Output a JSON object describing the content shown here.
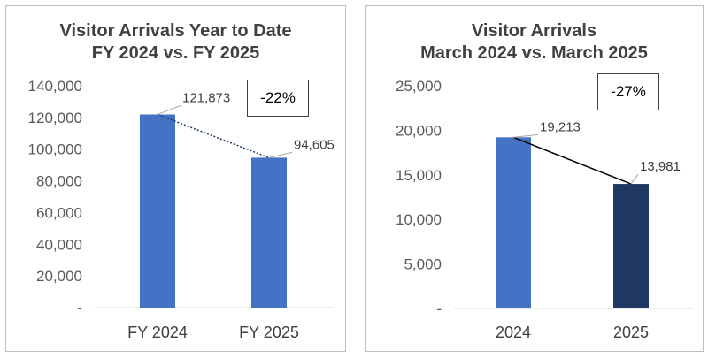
{
  "chart_data": [
    {
      "type": "bar",
      "title_lines": [
        "Visitor Arrivals Year to Date",
        "FY 2024 vs. FY 2025"
      ],
      "categories": [
        "FY 2024",
        "FY 2025"
      ],
      "values": [
        121873,
        94605
      ],
      "value_labels": [
        "121,873",
        "94,605"
      ],
      "bar_colors": [
        "#4472C4",
        "#4472C4"
      ],
      "ylim": [
        0,
        140000
      ],
      "yticks": [
        0,
        20000,
        40000,
        60000,
        80000,
        100000,
        120000,
        140000
      ],
      "ytick_labels": [
        "-",
        "20,000",
        "40,000",
        "60,000",
        "80,000",
        "100,000",
        "120,000",
        "140,000"
      ],
      "connector": {
        "style": "dotted",
        "color": "#1F3864"
      },
      "annotation": "-22%",
      "grid": false,
      "xlabel": "",
      "ylabel": ""
    },
    {
      "type": "bar",
      "title_lines": [
        "Visitor Arrivals",
        "March 2024 vs. March 2025"
      ],
      "categories": [
        "2024",
        "2025"
      ],
      "values": [
        19213,
        13981
      ],
      "value_labels": [
        "19,213",
        "13,981"
      ],
      "bar_colors": [
        "#4472C4",
        "#1F3864"
      ],
      "ylim": [
        0,
        25000
      ],
      "yticks": [
        0,
        5000,
        10000,
        15000,
        20000,
        25000
      ],
      "ytick_labels": [
        "-",
        "5,000",
        "10,000",
        "15,000",
        "20,000",
        "25,000"
      ],
      "connector": {
        "style": "solid",
        "color": "#000000"
      },
      "annotation": "-27%",
      "grid": false,
      "xlabel": "",
      "ylabel": ""
    }
  ]
}
